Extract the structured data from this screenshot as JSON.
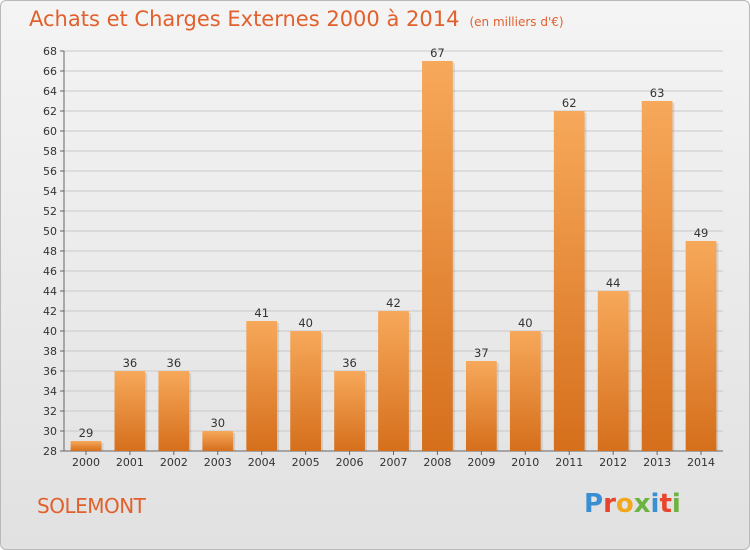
{
  "title": "Achats et Charges Externes 2000 à 2014",
  "subtitle": "(en milliers d'€)",
  "commune": "SOLEMONT",
  "logo_text": "Proxiti",
  "logo_colors": [
    "#3a8fd3",
    "#e8452c",
    "#f2a81d",
    "#6db33f",
    "#3a8fd3",
    "#e8452c",
    "#6db33f"
  ],
  "colors": {
    "accent": "#e2602c",
    "bar_top": "#f7a85a",
    "bar_bottom": "#d56f1c"
  },
  "chart_data": {
    "type": "bar",
    "categories": [
      "2000",
      "2001",
      "2002",
      "2003",
      "2004",
      "2005",
      "2006",
      "2007",
      "2008",
      "2009",
      "2010",
      "2011",
      "2012",
      "2013",
      "2014"
    ],
    "values": [
      29,
      36,
      36,
      30,
      41,
      40,
      36,
      42,
      67,
      37,
      40,
      62,
      44,
      63,
      49
    ],
    "ylim": [
      28,
      68
    ],
    "yticks": [
      28,
      30,
      32,
      34,
      36,
      38,
      40,
      42,
      44,
      46,
      48,
      50,
      52,
      54,
      56,
      58,
      60,
      62,
      64,
      66,
      68
    ],
    "grid": true,
    "data_labels": true
  }
}
